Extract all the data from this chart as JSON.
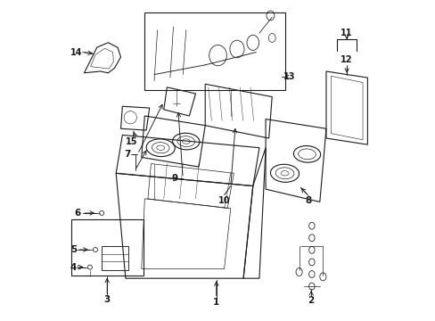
{
  "background_color": "#ffffff",
  "line_color": "#1a1a1a",
  "figsize": [
    4.89,
    3.6
  ],
  "dpi": 100,
  "lw": 0.8
}
